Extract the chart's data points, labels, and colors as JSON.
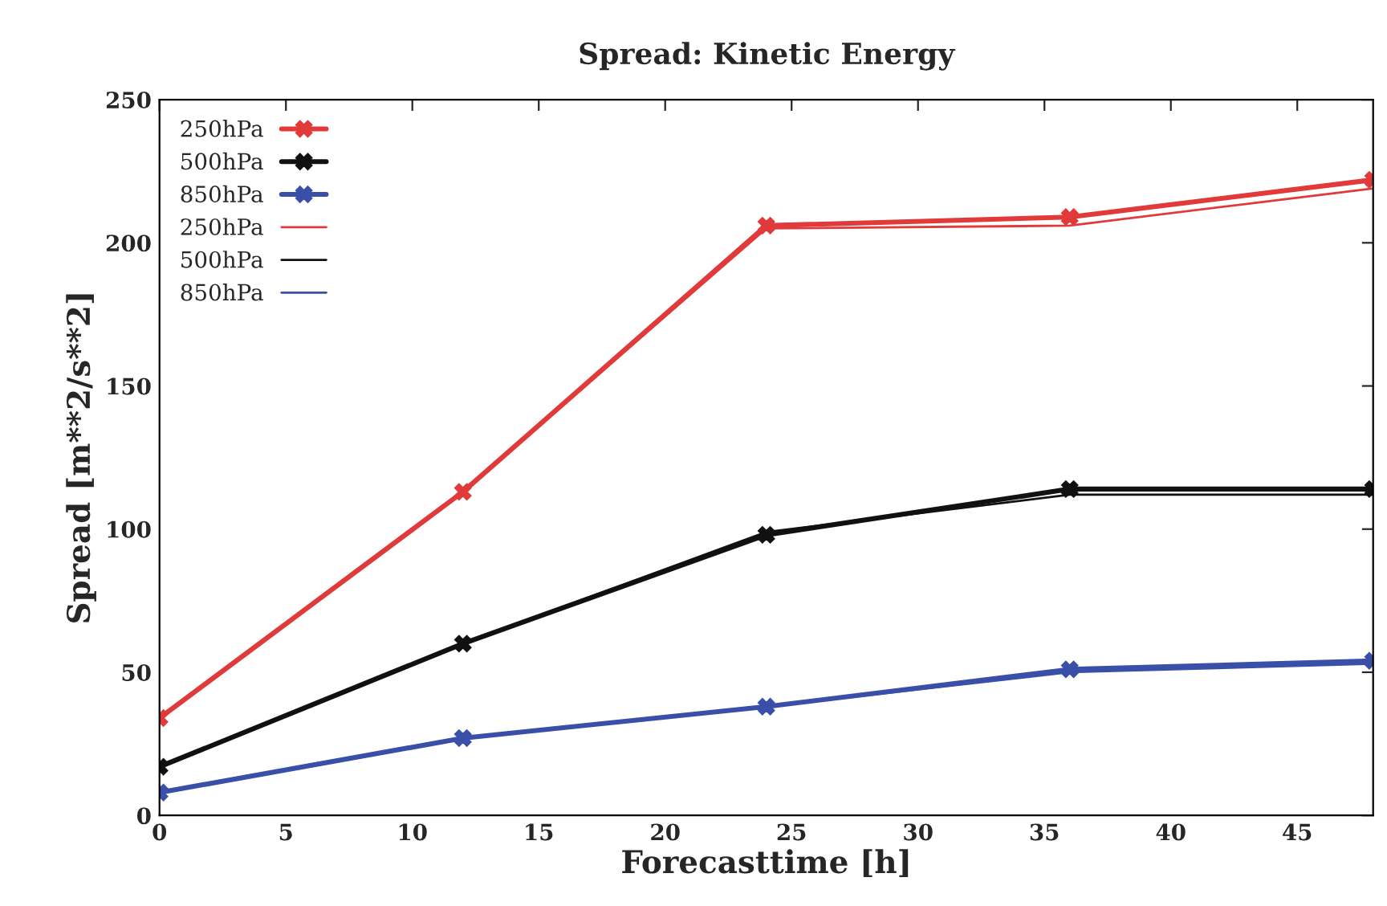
{
  "chart_data": {
    "type": "line",
    "title": "Spread: Kinetic Energy",
    "xlabel": "Forecasttime [h]",
    "ylabel": "Spread [m**2/s**2]",
    "x": [
      0,
      12,
      24,
      36,
      48
    ],
    "series": [
      {
        "name": "250hPa",
        "color": "#e03a3a",
        "marker": "cross",
        "values": [
          34,
          113,
          206,
          209,
          222
        ]
      },
      {
        "name": "500hPa",
        "color": "#111111",
        "marker": "cross",
        "values": [
          17,
          60,
          98,
          114,
          114
        ]
      },
      {
        "name": "850hPa",
        "color": "#3a4fa8",
        "marker": "cross",
        "values": [
          8,
          27,
          38,
          51,
          54
        ]
      },
      {
        "name": "250hPa",
        "color": "#e03a3a",
        "marker": "none",
        "values": [
          34,
          113,
          205,
          206,
          219
        ]
      },
      {
        "name": "500hPa",
        "color": "#111111",
        "marker": "none",
        "values": [
          17,
          60,
          99,
          112,
          112
        ]
      },
      {
        "name": "850hPa",
        "color": "#3a4fa8",
        "marker": "none",
        "values": [
          8,
          27,
          38,
          50,
          53
        ]
      }
    ],
    "xlim": [
      0,
      48
    ],
    "ylim": [
      0,
      250
    ],
    "xticks": [
      0,
      5,
      10,
      15,
      20,
      25,
      30,
      35,
      40,
      45
    ],
    "yticks": [
      0,
      50,
      100,
      150,
      200,
      250
    ],
    "grid": false,
    "legend": "top left",
    "line_style": "solid"
  }
}
